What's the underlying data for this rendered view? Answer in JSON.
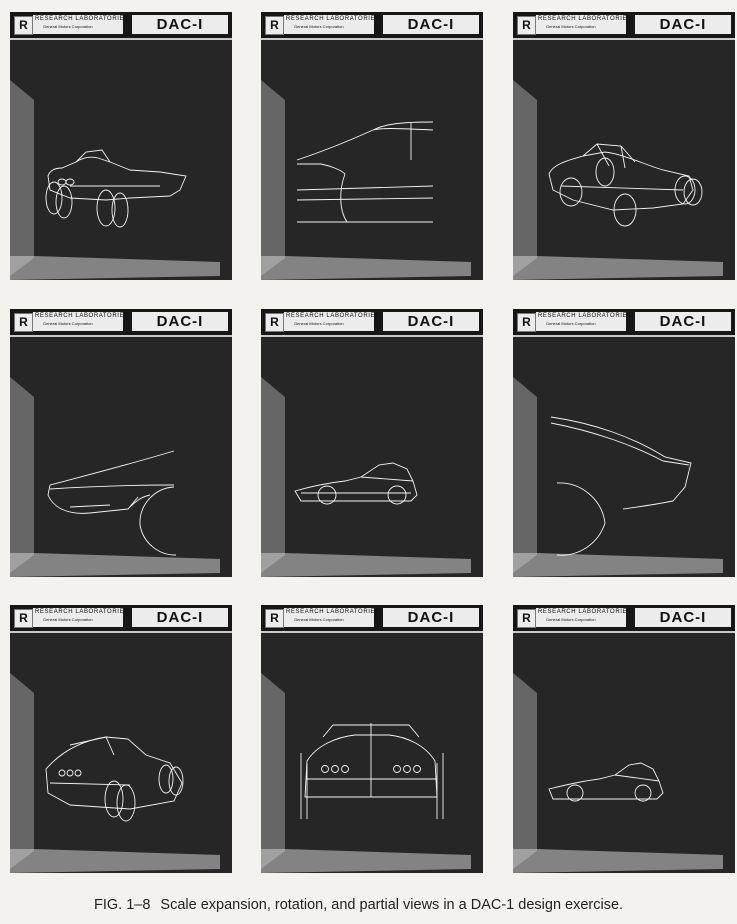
{
  "panel_header": {
    "logo_glyph": "R",
    "lab_line1": "RESEARCH LABORATORIES",
    "lab_line2": "General Motors Corporation",
    "system_name": "DAC-I"
  },
  "caption": {
    "figure_number": "FIG. 1–8",
    "text": "Scale expansion, rotation, and partial views in a DAC-1 design exercise."
  },
  "panel_views": [
    "three-quarter-view",
    "door-closeup",
    "rotated-wireframe",
    "front-fender-closeup",
    "side-profile",
    "rear-fender-closeup",
    "rear-three-quarter-view",
    "rear-view",
    "side-profile-small"
  ],
  "colors": {
    "page": "#f3f2ef",
    "screen": "#262626",
    "line": "#f4f4f4"
  }
}
